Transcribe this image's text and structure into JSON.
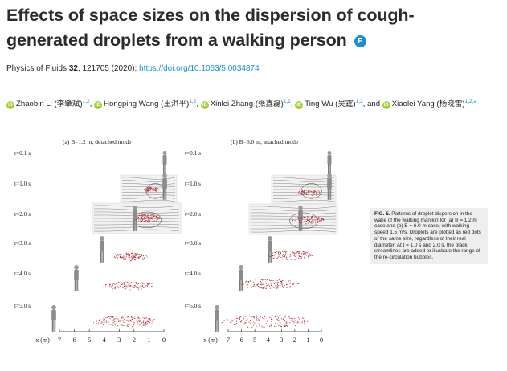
{
  "article": {
    "title": "Effects of space sizes on the dispersion of cough-generated droplets from a walking person",
    "title_badge": "F",
    "journal": "Physics of Fluids",
    "volume": "32",
    "pages_year": ", 121705 (2020); ",
    "doi": "https://doi.org/10.1063/5.0034874"
  },
  "authors": [
    {
      "name": "Zhaobin Li (李肇斌)",
      "aff": "1,2",
      "sep": ", "
    },
    {
      "name": "Hongping Wang (王洪平)",
      "aff": "1,2",
      "sep": ", "
    },
    {
      "name": "Xinlei Zhang (张鑫磊)",
      "aff": "1,2",
      "sep": ", "
    },
    {
      "name": "Ting Wu (吴霆)",
      "aff": "1,2",
      "sep": ", and "
    },
    {
      "name": "Xiaolei Yang (杨晓雷)",
      "aff": "1,2,a",
      "sep": ""
    }
  ],
  "figure": {
    "panel_a": "(a) B=1.2 m, detached mode",
    "panel_b": "(b) B=6.0 m, attached mode",
    "rows": [
      "t=0.1 s",
      "t=1.0 s",
      "t=2.0 s",
      "t=3.0 s",
      "t=4.0 s",
      "t=5.0 s"
    ],
    "axis_label": "x (m)",
    "ticks": [
      "7",
      "6",
      "5",
      "4",
      "3",
      "2",
      "1",
      "0"
    ],
    "droplet_color": "#b0202a"
  },
  "caption": {
    "label": "FIG. 5.",
    "text": " Patterns of droplet dispersion in the wake of the walking manikin for (a) B = 1.2 m case and (b) B = 6.0 m case, with walking speed 1.5 m/s. Droplets are plotted as red dots of the same size, regardless of their real diameter. At t = 1.0 s and 2.0 s, the black streamlines are added to illustrate the range of the re-circulation bubbles."
  }
}
